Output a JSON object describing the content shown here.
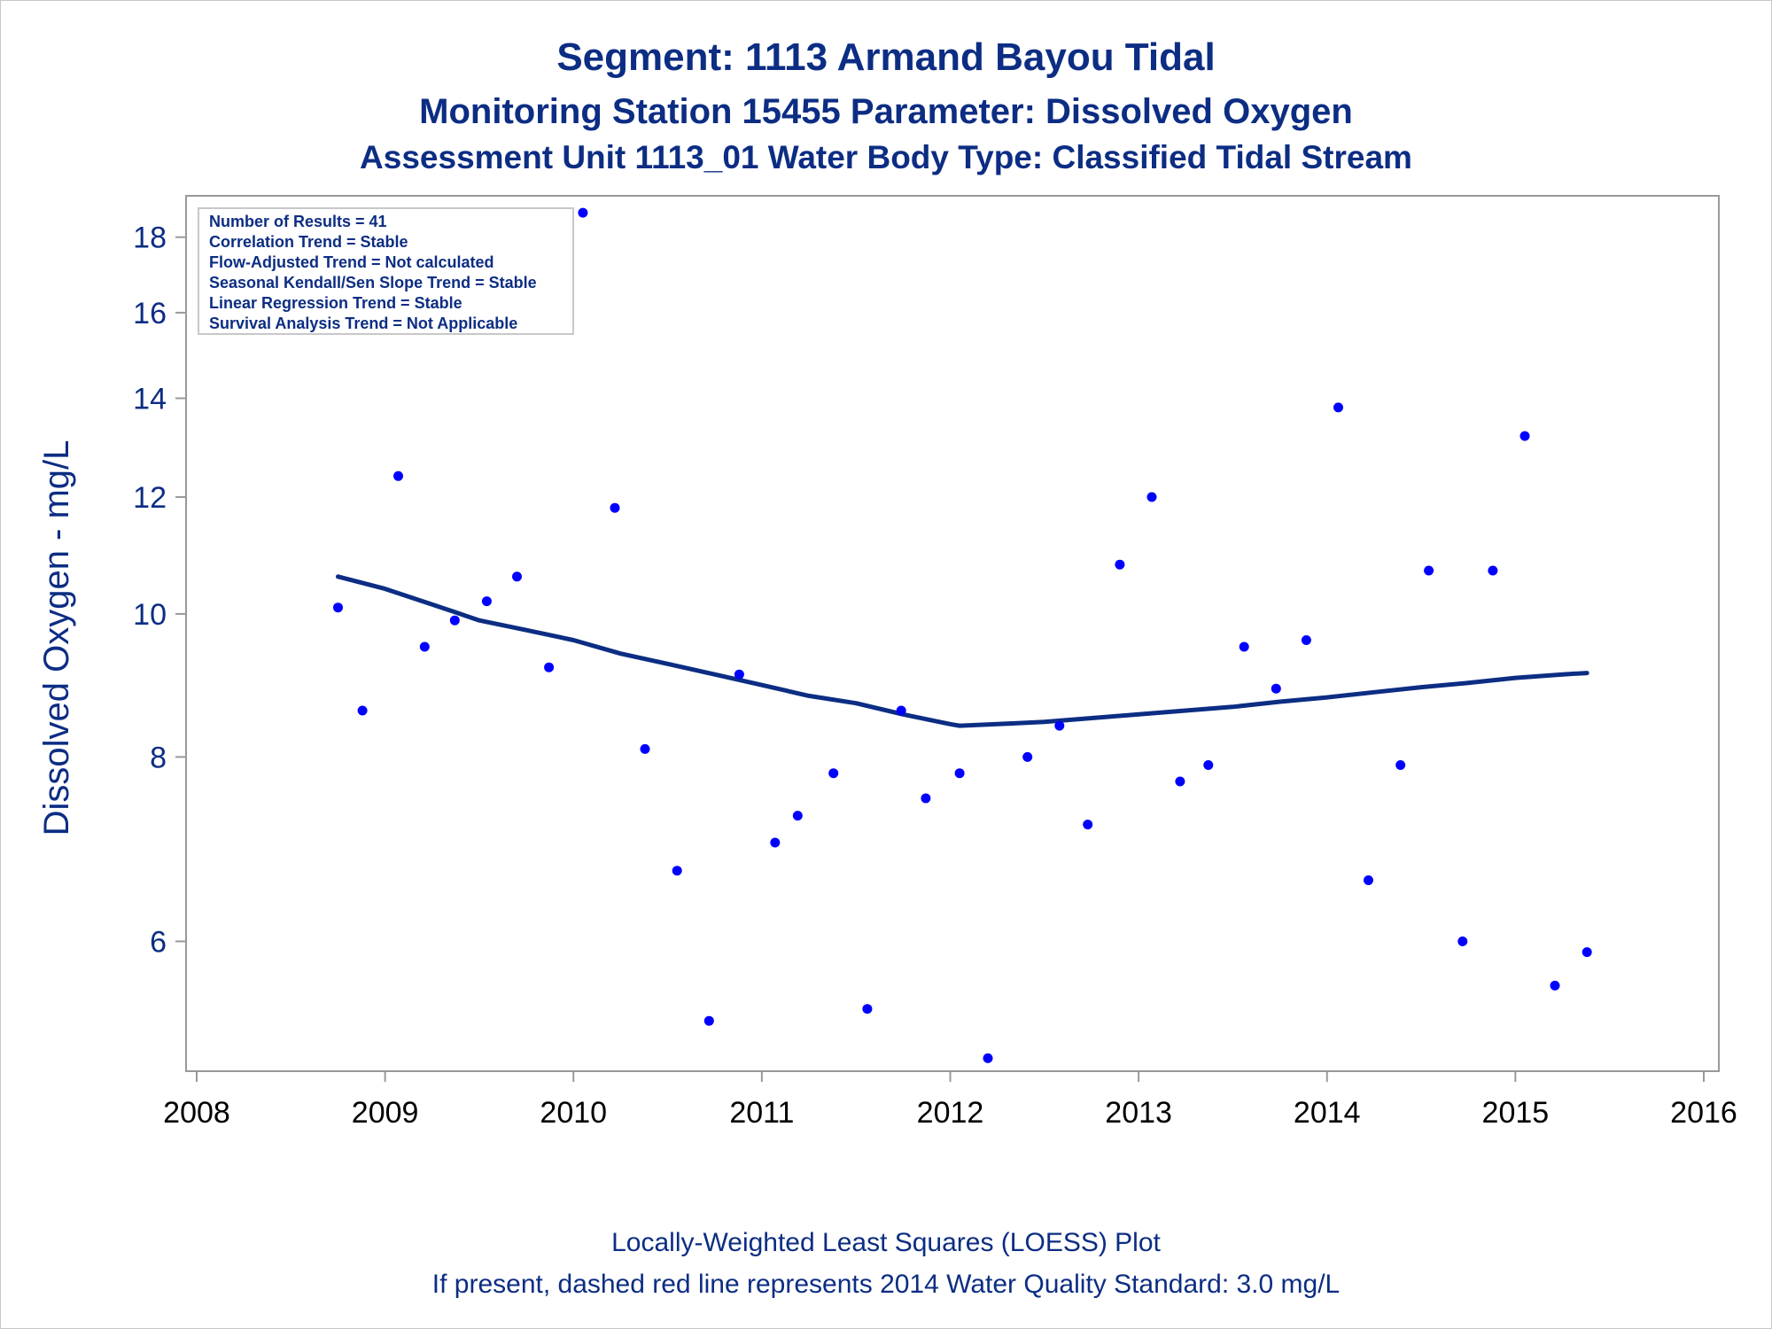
{
  "chart_data": {
    "type": "scatter",
    "title": "Segment: 1113  Armand Bayou Tidal",
    "subtitle": "Monitoring Station 15455 Parameter: Dissolved Oxygen",
    "subtitle2": "Assessment Unit 1113_01   Water Body Type: Classified Tidal Stream",
    "xlabel": "",
    "ylabel": "Dissolved Oxygen - mg/L",
    "xlim": [
      2008,
      2016
    ],
    "ylim": [
      4.9,
      19.2
    ],
    "yscale": "log",
    "xticks": [
      "2008",
      "2009",
      "2010",
      "2011",
      "2012",
      "2013",
      "2014",
      "2015",
      "2016"
    ],
    "yticks": [
      "6",
      "8",
      "10",
      "12",
      "14",
      "16",
      "18"
    ],
    "grid": false,
    "stats_box": {
      "placement": "top-left",
      "lines": [
        "Number of Results = 41",
        "Correlation Trend = Stable",
        "Flow-Adjusted Trend = Not calculated",
        "Seasonal Kendall/Sen Slope Trend = Stable",
        "Linear Regression Trend = Stable",
        "Survival Analysis Trend = Not Applicable"
      ]
    },
    "series": [
      {
        "type": "scatter",
        "color": "#0000ff",
        "points": [
          [
            2008.75,
            10.1
          ],
          [
            2008.88,
            8.6
          ],
          [
            2009.07,
            12.4
          ],
          [
            2009.21,
            9.5
          ],
          [
            2009.37,
            9.9
          ],
          [
            2009.54,
            10.2
          ],
          [
            2009.7,
            10.6
          ],
          [
            2009.87,
            9.2
          ],
          [
            2010.05,
            18.7
          ],
          [
            2010.22,
            11.8
          ],
          [
            2010.38,
            8.1
          ],
          [
            2010.55,
            6.7
          ],
          [
            2010.72,
            5.3
          ],
          [
            2010.88,
            9.1
          ],
          [
            2011.07,
            7.0
          ],
          [
            2011.19,
            7.3
          ],
          [
            2011.38,
            7.8
          ],
          [
            2011.56,
            5.4
          ],
          [
            2011.74,
            8.6
          ],
          [
            2011.87,
            7.5
          ],
          [
            2012.05,
            7.8
          ],
          [
            2012.2,
            5.0
          ],
          [
            2012.41,
            8.0
          ],
          [
            2012.58,
            8.4
          ],
          [
            2012.73,
            7.2
          ],
          [
            2012.9,
            10.8
          ],
          [
            2013.07,
            12.0
          ],
          [
            2013.22,
            7.7
          ],
          [
            2013.37,
            7.9
          ],
          [
            2013.56,
            9.5
          ],
          [
            2013.73,
            8.9
          ],
          [
            2013.89,
            9.6
          ],
          [
            2014.06,
            13.8
          ],
          [
            2014.22,
            6.6
          ],
          [
            2014.39,
            7.9
          ],
          [
            2014.54,
            10.7
          ],
          [
            2014.72,
            6.0
          ],
          [
            2014.88,
            10.7
          ],
          [
            2015.05,
            13.2
          ],
          [
            2015.21,
            5.6
          ],
          [
            2015.38,
            5.9
          ]
        ]
      },
      {
        "type": "line",
        "color": "#0c2d83",
        "x": [
          2008.75,
          2009.0,
          2009.25,
          2009.5,
          2009.75,
          2010.0,
          2010.25,
          2010.5,
          2010.75,
          2011.0,
          2011.25,
          2011.5,
          2011.75,
          2012.0,
          2012.05,
          2012.25,
          2012.5,
          2012.75,
          2013.0,
          2013.25,
          2013.5,
          2013.75,
          2014.0,
          2014.25,
          2014.5,
          2014.75,
          2015.0,
          2015.25,
          2015.38
        ],
        "y": [
          10.6,
          10.4,
          10.15,
          9.9,
          9.75,
          9.6,
          9.4,
          9.25,
          9.1,
          8.95,
          8.8,
          8.7,
          8.55,
          8.42,
          8.4,
          8.42,
          8.45,
          8.5,
          8.55,
          8.6,
          8.65,
          8.72,
          8.78,
          8.85,
          8.92,
          8.98,
          9.05,
          9.1,
          9.12
        ]
      }
    ],
    "footnotes": [
      "Locally-Weighted Least Squares (LOESS) Plot",
      "If present, dashed red line represents 2014 Water Quality Standard: 3.0 mg/L"
    ]
  }
}
